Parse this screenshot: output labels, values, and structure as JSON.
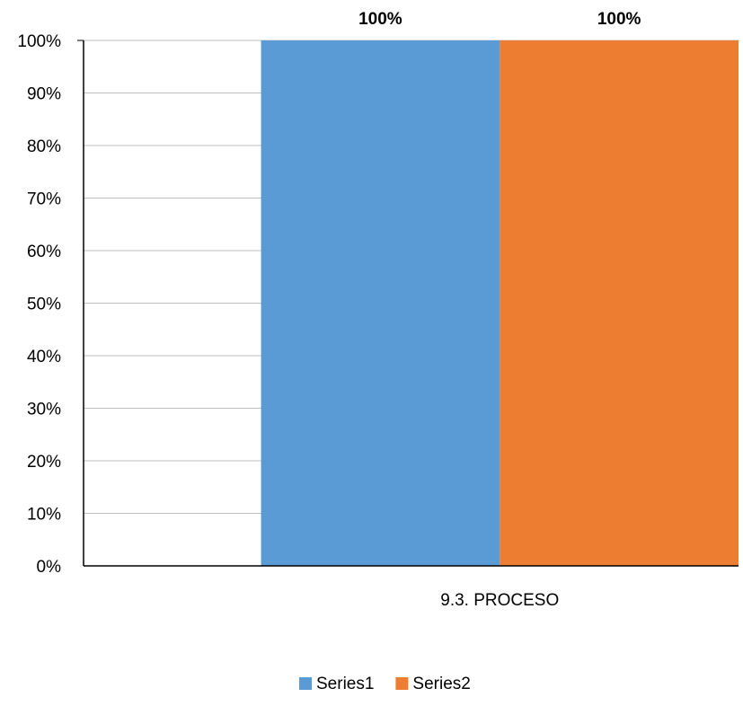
{
  "chart_data": {
    "type": "bar",
    "categories": [
      "9.3. PROCESO"
    ],
    "series": [
      {
        "name": "Series1",
        "values": [
          1.0
        ],
        "color": "#5B9BD5",
        "data_label": "100%"
      },
      {
        "name": "Series2",
        "values": [
          1.0
        ],
        "color": "#ED7D31",
        "data_label": "100%"
      }
    ],
    "ylim": [
      0,
      1
    ],
    "yticks": [
      "0%",
      "10%",
      "20%",
      "30%",
      "40%",
      "50%",
      "60%",
      "70%",
      "80%",
      "90%",
      "100%"
    ],
    "grid": true,
    "legend": "bottom",
    "title": "",
    "xlabel": "",
    "ylabel": ""
  }
}
